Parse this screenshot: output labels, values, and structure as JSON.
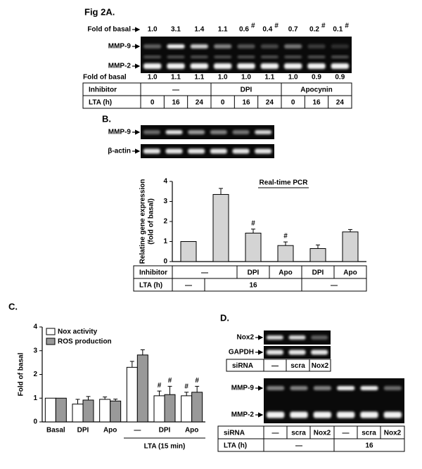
{
  "panel_a": {
    "label": "Fig 2A.",
    "fold_label": "Fold of basal",
    "fold_top": [
      "1.0",
      "3.1",
      "1.4",
      "1.1",
      "0.6",
      "0.4",
      "0.7",
      "0.2",
      "0.1"
    ],
    "fold_top_marks": [
      null,
      null,
      null,
      null,
      "#",
      "#",
      null,
      "#",
      "#"
    ],
    "gel_labels": [
      "MMP-9",
      "MMP-2"
    ],
    "fold_bottom": [
      "1.0",
      "1.1",
      "1.1",
      "1.0",
      "1.0",
      "1.1",
      "1.0",
      "0.9",
      "0.9"
    ],
    "table": {
      "rows": [
        [
          "Inhibitor",
          "—",
          "DPI",
          "Apocynin"
        ],
        [
          "LTA (h)",
          "0",
          "16",
          "24",
          "0",
          "16",
          "24",
          "0",
          "16",
          "24"
        ]
      ]
    }
  },
  "panel_b": {
    "label": "B.",
    "gel_labels": [
      "MMP-9",
      "β-actin"
    ],
    "table": {
      "rows": [
        [
          "Inhibitor",
          "—",
          "DPI",
          "Apo",
          "DPI",
          "Apo"
        ],
        [
          "LTA (h)",
          "—",
          "16",
          "—"
        ]
      ]
    }
  },
  "panel_c": {
    "label": "C."
  },
  "panel_d": {
    "label": "D.",
    "gel_labels_top": [
      "Nox2",
      "GAPDH"
    ],
    "table_top": {
      "rows": [
        [
          "siRNA",
          "—",
          "scra",
          "Nox2"
        ]
      ]
    },
    "gel_labels_bottom": [
      "MMP-9",
      "MMP-2"
    ],
    "table_bottom": {
      "rows": [
        [
          "siRNA",
          "—",
          "scra",
          "Nox2",
          "—",
          "scra",
          "Nox2"
        ],
        [
          "LTA (h)",
          "—",
          "16"
        ]
      ]
    }
  },
  "chart_data": [
    {
      "type": "bar",
      "title": "Real-time PCR",
      "y_label": [
        "Relatine gene expression",
        "(fold of basal)"
      ],
      "series": [
        {
          "color": "#d4d4d4",
          "values": [
            1.0,
            3.35,
            1.42,
            0.8,
            0.65,
            1.48
          ],
          "errors": [
            0,
            0.3,
            0.2,
            0.18,
            0.18,
            0.12
          ],
          "markers": [
            null,
            null,
            "#",
            "#",
            null,
            null
          ]
        }
      ],
      "ylim": [
        0,
        4
      ],
      "yticks": [
        0,
        1,
        2,
        3,
        4
      ]
    },
    {
      "type": "bar",
      "y_label": [
        "Fold of basal"
      ],
      "x_label": "LTA (15 min)",
      "categories": [
        "Basal",
        "DPI",
        "Apo",
        "—",
        "DPI",
        "Apo"
      ],
      "series": [
        {
          "name": "Nox activity",
          "color": "#ffffff",
          "values": [
            1.0,
            0.75,
            0.95,
            2.3,
            1.1,
            1.1
          ],
          "errors": [
            0,
            0.2,
            0.1,
            0.25,
            0.2,
            0.15
          ],
          "markers": [
            null,
            null,
            null,
            null,
            "#",
            "#"
          ]
        },
        {
          "name": "ROS production",
          "color": "#999999",
          "values": [
            1.0,
            0.92,
            0.88,
            2.82,
            1.15,
            1.25
          ],
          "errors": [
            0,
            0.15,
            0.08,
            0.22,
            0.35,
            0.25
          ],
          "markers": [
            null,
            null,
            null,
            null,
            "#",
            "#"
          ]
        }
      ],
      "ylim": [
        0,
        4
      ],
      "yticks": [
        0,
        1,
        2,
        3,
        4
      ],
      "legend": "upper left"
    }
  ]
}
